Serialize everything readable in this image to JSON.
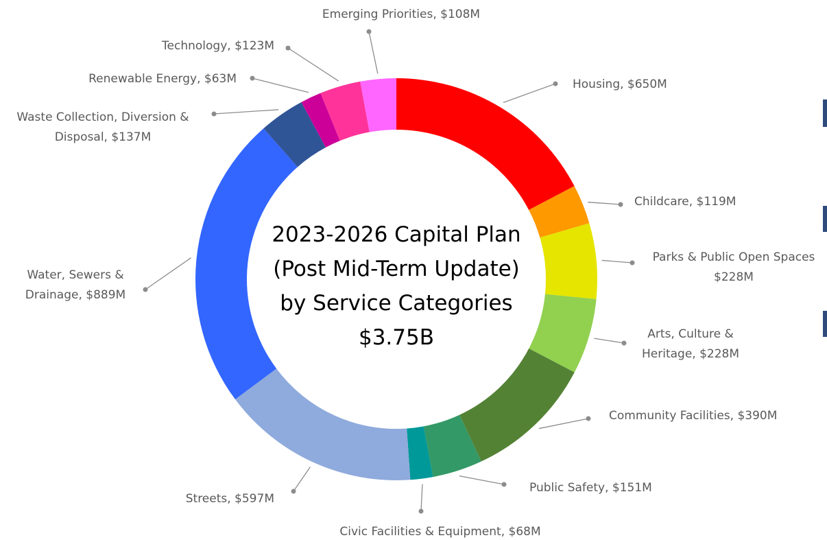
{
  "chart_data": {
    "type": "donut",
    "title": "2023-2026 Capital Plan\n(Post Mid-Term Update)\nby Service Categories\n$3.75B",
    "values": [
      650,
      119,
      228,
      228,
      390,
      151,
      68,
      597,
      889,
      137,
      63,
      123,
      108
    ],
    "value_labels": [
      "Housing, $650M",
      "Childcare, $119M",
      "Parks & Public Open Spaces\n$228M",
      "Arts, Culture &\nHeritage, $228M",
      "Community Facilities, $390M",
      "Public Safety, $151M",
      "Civic Facilities & Equipment, $68M",
      "Streets, $597M",
      "Water, Sewers &\nDrainage, $889M",
      "Waste Collection, Diversion &\nDisposal, $137M",
      "Renewable Energy, $63M",
      "Technology, $123M",
      "Emerging Priorities, $108M"
    ],
    "colors": [
      "#ff0000",
      "#ff9900",
      "#e5e500",
      "#92d050",
      "#548235",
      "#339966",
      "#009999",
      "#8faadc",
      "#3366ff",
      "#2f5597",
      "#cc0099",
      "#ff3399",
      "#ff66ff"
    ]
  }
}
